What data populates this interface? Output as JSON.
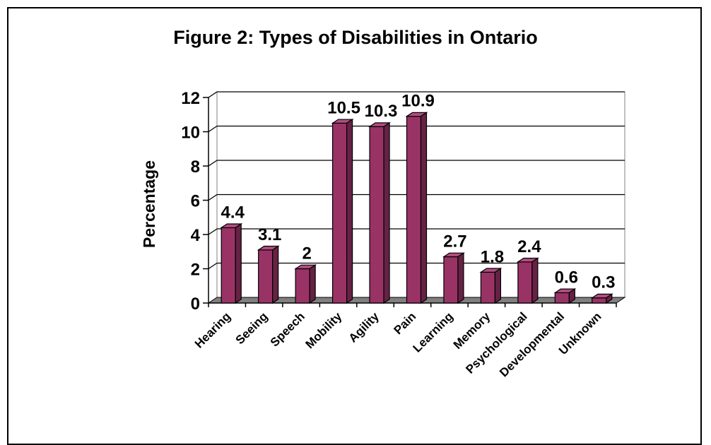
{
  "chart_data": {
    "type": "bar",
    "title": "Figure 2: Types of Disabilities in Ontario",
    "xlabel": "",
    "ylabel": "Percentage",
    "ylim": [
      0,
      12
    ],
    "yticks": [
      "0",
      "2",
      "4",
      "6",
      "8",
      "10",
      "12"
    ],
    "grid": true,
    "legend": "none",
    "categories": [
      "Hearing",
      "Seeing",
      "Speech",
      "Mobility",
      "Agility",
      "Pain",
      "Learning",
      "Memory",
      "Psychological",
      "Developmental",
      "Unknown"
    ],
    "values": [
      4.4,
      3.1,
      2,
      10.5,
      10.3,
      10.9,
      2.7,
      1.8,
      2.4,
      0.6,
      0.3
    ],
    "data_labels": [
      "4.4",
      "3.1",
      "2",
      "10.5",
      "10.3",
      "10.9",
      "2.7",
      "1.8",
      "2.4",
      "0.6",
      "0.3"
    ],
    "colors": {
      "bar_front": "#993366",
      "bar_top": "#b34d80",
      "bar_side": "#662244",
      "floor": "#808080",
      "wall": "#ffffff"
    }
  }
}
